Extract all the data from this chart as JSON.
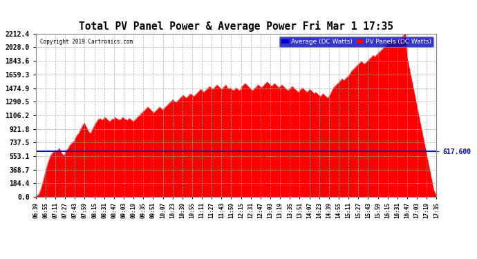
{
  "title": "Total PV Panel Power & Average Power Fri Mar 1 17:35",
  "copyright": "Copyright 2019 Cartronics.com",
  "legend_avg": "Average (DC Watts)",
  "legend_pv": "PV Panels (DC Watts)",
  "avg_value": 617.6,
  "ymin": 0.0,
  "ymax": 2212.4,
  "yticks": [
    0.0,
    184.4,
    368.7,
    553.1,
    737.5,
    921.8,
    1106.2,
    1290.5,
    1474.9,
    1659.3,
    1843.6,
    2028.0,
    2212.4
  ],
  "background_color": "#ffffff",
  "plot_bg_color": "#ffffff",
  "area_color": "#ff0000",
  "avg_line_color": "#0000cc",
  "grid_color": "#aaaaaa",
  "title_color": "#000000",
  "tick_label_color": "#000000",
  "xtick_labels": [
    "06:39",
    "06:55",
    "07:11",
    "07:27",
    "07:43",
    "07:59",
    "08:15",
    "08:31",
    "08:47",
    "09:03",
    "09:19",
    "09:35",
    "09:51",
    "10:07",
    "10:23",
    "10:39",
    "10:55",
    "11:11",
    "11:27",
    "11:43",
    "11:59",
    "12:15",
    "12:31",
    "12:47",
    "13:03",
    "13:19",
    "13:35",
    "13:51",
    "14:07",
    "14:23",
    "14:39",
    "14:55",
    "15:11",
    "15:27",
    "15:43",
    "15:59",
    "16:15",
    "16:31",
    "16:47",
    "17:03",
    "17:19",
    "17:35"
  ],
  "pv_data": [
    10,
    20,
    40,
    80,
    150,
    220,
    300,
    380,
    450,
    510,
    560,
    590,
    610,
    630,
    620,
    640,
    660,
    610,
    580,
    560,
    600,
    640,
    660,
    700,
    720,
    740,
    760,
    800,
    840,
    860,
    900,
    940,
    980,
    1000,
    960,
    920,
    880,
    860,
    900,
    940,
    980,
    1010,
    1040,
    1060,
    1060,
    1040,
    1060,
    1080,
    1060,
    1040,
    1020,
    1040,
    1060,
    1050,
    1080,
    1060,
    1050,
    1040,
    1060,
    1080,
    1060,
    1050,
    1040,
    1060,
    1060,
    1040,
    1020,
    1040,
    1060,
    1080,
    1100,
    1120,
    1140,
    1160,
    1180,
    1200,
    1220,
    1200,
    1180,
    1160,
    1140,
    1160,
    1180,
    1200,
    1220,
    1200,
    1180,
    1200,
    1220,
    1240,
    1260,
    1280,
    1300,
    1320,
    1300,
    1280,
    1300,
    1320,
    1340,
    1360,
    1380,
    1360,
    1340,
    1360,
    1380,
    1400,
    1380,
    1360,
    1380,
    1400,
    1420,
    1440,
    1460,
    1440,
    1420,
    1440,
    1460,
    1480,
    1500,
    1480,
    1460,
    1480,
    1500,
    1520,
    1500,
    1480,
    1460,
    1480,
    1500,
    1520,
    1480,
    1460,
    1480,
    1460,
    1440,
    1460,
    1480,
    1460,
    1440,
    1460,
    1500,
    1520,
    1540,
    1520,
    1500,
    1480,
    1460,
    1440,
    1460,
    1480,
    1500,
    1520,
    1500,
    1480,
    1500,
    1520,
    1540,
    1560,
    1540,
    1520,
    1500,
    1520,
    1540,
    1520,
    1500,
    1480,
    1500,
    1520,
    1500,
    1480,
    1460,
    1440,
    1460,
    1480,
    1500,
    1480,
    1460,
    1440,
    1420,
    1440,
    1460,
    1480,
    1460,
    1440,
    1420,
    1440,
    1460,
    1440,
    1420,
    1400,
    1420,
    1400,
    1380,
    1360,
    1380,
    1400,
    1380,
    1360,
    1340,
    1360,
    1400,
    1440,
    1480,
    1500,
    1520,
    1540,
    1560,
    1580,
    1600,
    1580,
    1600,
    1620,
    1640,
    1660,
    1700,
    1720,
    1740,
    1760,
    1780,
    1800,
    1820,
    1840,
    1820,
    1800,
    1820,
    1840,
    1860,
    1880,
    1900,
    1920,
    1900,
    1920,
    1940,
    1960,
    1980,
    2000,
    2020,
    2040,
    2060,
    2080,
    2100,
    2120,
    2100,
    2080,
    2060,
    2100,
    2120,
    2140,
    2160,
    2180,
    2200,
    2212,
    1900,
    1800,
    1700,
    1600,
    1500,
    1400,
    1300,
    1200,
    1100,
    1000,
    900,
    800,
    700,
    600,
    500,
    400,
    300,
    200,
    100,
    50,
    10
  ],
  "spike_index": 251,
  "spike_value": 2212.4
}
